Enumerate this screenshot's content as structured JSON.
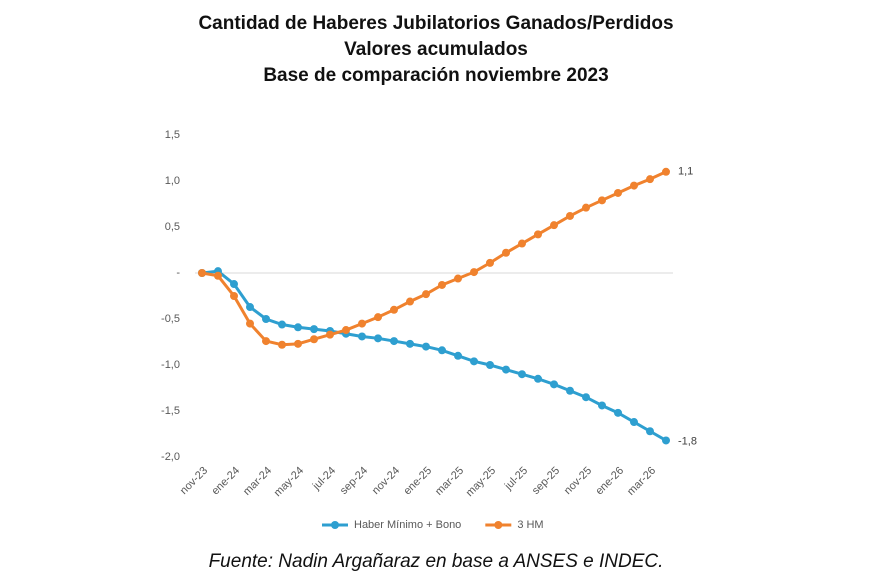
{
  "chart_data": {
    "type": "line",
    "title": [
      "Cantidad de Haberes Jubilatorios Ganados/Perdidos",
      "Valores acumulados",
      "Base de comparación noviembre 2023"
    ],
    "categories": [
      "nov-23",
      null,
      "ene-24",
      null,
      "mar-24",
      null,
      "may-24",
      null,
      "jul-24",
      null,
      "sep-24",
      null,
      "nov-24",
      null,
      "ene-25",
      null,
      "mar-25",
      null,
      "may-25",
      null,
      "jul-25",
      null,
      "sep-25",
      null,
      "nov-25",
      null,
      "ene-26",
      null,
      "mar-26",
      null
    ],
    "series": [
      {
        "name": "Haber Mínimo + Bono",
        "color": "#2e9fd0",
        "values": [
          0,
          0.02,
          -0.12,
          -0.37,
          -0.5,
          -0.56,
          -0.59,
          -0.61,
          -0.63,
          -0.66,
          -0.69,
          -0.71,
          -0.74,
          -0.77,
          -0.8,
          -0.84,
          -0.9,
          -0.96,
          -1.0,
          -1.05,
          -1.1,
          -1.15,
          -1.21,
          -1.28,
          -1.35,
          -1.44,
          -1.52,
          -1.62,
          -1.72,
          -1.82
        ],
        "value_labels": [
          null,
          null,
          null,
          null,
          null,
          null,
          null,
          null,
          null,
          null,
          null,
          null,
          null,
          null,
          null,
          null,
          null,
          null,
          null,
          null,
          null,
          null,
          null,
          null,
          null,
          null,
          null,
          null,
          null,
          "-1,8"
        ]
      },
      {
        "name": "3 HM",
        "color": "#f0822e",
        "values": [
          0,
          -0.03,
          -0.25,
          -0.55,
          -0.74,
          -0.78,
          -0.77,
          -0.72,
          -0.67,
          -0.62,
          -0.55,
          -0.48,
          -0.4,
          -0.31,
          -0.23,
          -0.13,
          -0.06,
          0.01,
          0.11,
          0.22,
          0.32,
          0.42,
          0.52,
          0.62,
          0.71,
          0.79,
          0.87,
          0.95,
          1.02,
          1.1
        ],
        "value_labels": [
          null,
          null,
          null,
          null,
          null,
          null,
          null,
          null,
          null,
          null,
          null,
          null,
          null,
          null,
          null,
          null,
          null,
          null,
          null,
          null,
          null,
          null,
          null,
          null,
          null,
          null,
          null,
          null,
          null,
          "1,1"
        ]
      }
    ],
    "ylim": [
      -2,
      1.5
    ],
    "yticks": [
      {
        "value": -2,
        "label": "-2,0"
      },
      {
        "value": -1.5,
        "label": "-1,5"
      },
      {
        "value": -1,
        "label": "-1,0"
      },
      {
        "value": -0.5,
        "label": "-0,5"
      },
      {
        "value": 0,
        "label": "-"
      },
      {
        "value": 0.5,
        "label": "0,5"
      },
      {
        "value": 1,
        "label": "1,0"
      },
      {
        "value": 1.5,
        "label": "1,5"
      }
    ],
    "zero_line": true,
    "legend": "bottom",
    "caption": "Fuente: Nadin Argañaraz en base a ANSES e INDEC."
  }
}
